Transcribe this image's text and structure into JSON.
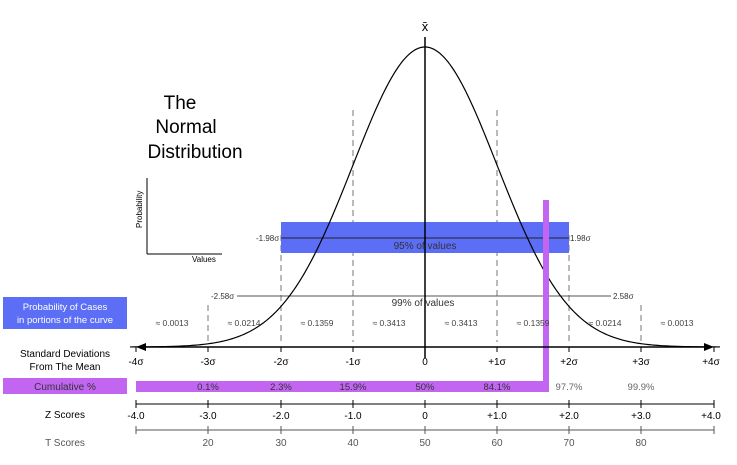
{
  "title": [
    "The",
    "Normal",
    "Distribution"
  ],
  "mean_symbol": "x̄",
  "inset": {
    "y_label": "Probability",
    "x_label": "Values"
  },
  "band_95": {
    "label": "95% of values",
    "left": "-1.98σ",
    "right": "1.98σ"
  },
  "band_99": {
    "label": "99% of values",
    "left": "-2.58σ",
    "right": "2.58σ"
  },
  "probability_label": [
    "Probability of Cases",
    "in portions of the curve"
  ],
  "probabilities": [
    "≈ 0.0013",
    "≈ 0.0214",
    "≈ 0.1359",
    "≈ 0.3413",
    "≈ 0.3413",
    "≈ 0.1359",
    "≈ 0.0214",
    "≈ 0.0013"
  ],
  "sd_label": [
    "Standard Deviations",
    "From The Mean"
  ],
  "sd_ticks": [
    "-4σ",
    "-3σ",
    "-2σ",
    "-1σ",
    "0",
    "+1σ",
    "+2σ",
    "+3σ",
    "+4σ"
  ],
  "cumulative_label": "Cumulative %",
  "cumulative": [
    "0.1%",
    "2.3%",
    "15.9%",
    "50%",
    "84.1%",
    "97.7%",
    "99.9%"
  ],
  "z_label": "Z Scores",
  "z_ticks": [
    "-4.0",
    "-3.0",
    "-2.0",
    "-1.0",
    "0",
    "+1.0",
    "+2.0",
    "+3.0",
    "+4.0"
  ],
  "t_label": "T Scores",
  "t_ticks": [
    "20",
    "30",
    "40",
    "50",
    "60",
    "70",
    "80"
  ],
  "colors": {
    "blue": "#5b6ef5",
    "purple": "#c266f2",
    "curve": "#000000",
    "dash": "#777777"
  }
}
